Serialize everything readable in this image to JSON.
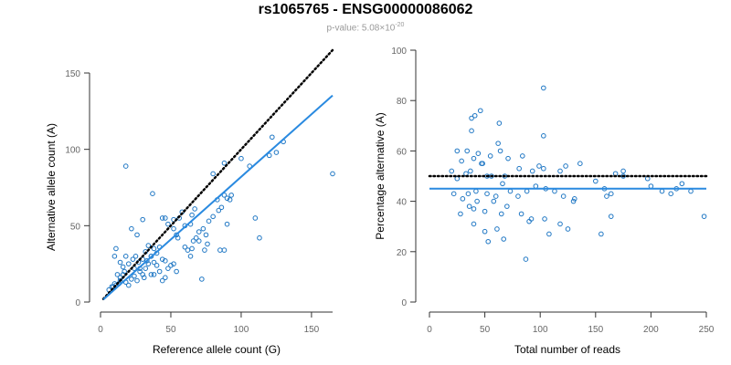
{
  "title": "rs1065765 - ENSG00000086062",
  "subtitle": {
    "prefix": "p-value: 5.08×10",
    "exponent": "-20"
  },
  "colors": {
    "points": "#1f77c4",
    "fit": "#2a8ae0",
    "reference": "#000000"
  },
  "chart_data": [
    {
      "type": "scatter",
      "xlabel": "Reference allele count (G)",
      "ylabel": "Alternative allele count (A)",
      "xlim": [
        0,
        165
      ],
      "ylim": [
        0,
        150
      ],
      "xticks": [
        "0",
        "50",
        "100",
        "150"
      ],
      "yticks": [
        "0",
        "50",
        "100",
        "150"
      ],
      "reference_line": {
        "style": "dotted",
        "slope": 1,
        "intercept": 0,
        "x_range": [
          2,
          165
        ]
      },
      "fit_line": {
        "slope": 0.82,
        "intercept": 0,
        "x_range": [
          2,
          165
        ]
      },
      "points": [
        [
          18,
          89
        ],
        [
          165,
          84
        ],
        [
          37,
          71
        ],
        [
          80,
          84
        ],
        [
          88,
          91
        ],
        [
          100,
          94
        ],
        [
          106,
          89
        ],
        [
          122,
          108
        ],
        [
          130,
          105
        ],
        [
          125,
          98
        ],
        [
          120,
          96
        ],
        [
          58,
          59
        ],
        [
          60,
          50
        ],
        [
          64,
          51
        ],
        [
          67,
          61
        ],
        [
          65,
          57
        ],
        [
          56,
          55
        ],
        [
          52,
          54
        ],
        [
          48,
          51
        ],
        [
          44,
          55
        ],
        [
          46,
          55
        ],
        [
          52,
          48
        ],
        [
          54,
          44
        ],
        [
          30,
          54
        ],
        [
          22,
          48
        ],
        [
          26,
          44
        ],
        [
          11,
          35
        ],
        [
          10,
          30
        ],
        [
          14,
          26
        ],
        [
          16,
          23
        ],
        [
          17,
          20
        ],
        [
          12,
          18
        ],
        [
          14,
          14
        ],
        [
          10,
          12
        ],
        [
          8,
          10
        ],
        [
          6,
          8
        ],
        [
          13,
          12
        ],
        [
          18,
          13
        ],
        [
          20,
          11
        ],
        [
          22,
          15
        ],
        [
          24,
          17
        ],
        [
          26,
          14
        ],
        [
          28,
          20
        ],
        [
          30,
          18
        ],
        [
          32,
          22
        ],
        [
          34,
          25
        ],
        [
          36,
          30
        ],
        [
          38,
          26
        ],
        [
          40,
          32
        ],
        [
          42,
          36
        ],
        [
          44,
          28
        ],
        [
          46,
          27
        ],
        [
          48,
          22
        ],
        [
          50,
          24
        ],
        [
          52,
          25
        ],
        [
          54,
          20
        ],
        [
          27,
          26
        ],
        [
          30,
          28
        ],
        [
          33,
          27
        ],
        [
          36,
          30
        ],
        [
          38,
          35
        ],
        [
          23,
          28
        ],
        [
          25,
          30
        ],
        [
          40,
          24
        ],
        [
          42,
          20
        ],
        [
          44,
          14
        ],
        [
          46,
          16
        ],
        [
          55,
          42
        ],
        [
          60,
          36
        ],
        [
          62,
          34
        ],
        [
          64,
          30
        ],
        [
          66,
          40
        ],
        [
          68,
          42
        ],
        [
          70,
          46
        ],
        [
          73,
          48
        ],
        [
          75,
          44
        ],
        [
          77,
          53
        ],
        [
          80,
          56
        ],
        [
          84,
          60
        ],
        [
          86,
          62
        ],
        [
          88,
          70
        ],
        [
          90,
          68
        ],
        [
          92,
          67
        ],
        [
          93,
          70
        ],
        [
          83,
          67
        ],
        [
          85,
          34
        ],
        [
          88,
          34
        ],
        [
          74,
          34
        ],
        [
          72,
          15
        ],
        [
          90,
          51
        ],
        [
          110,
          55
        ],
        [
          113,
          42
        ],
        [
          65,
          35
        ],
        [
          70,
          40
        ],
        [
          76,
          38
        ],
        [
          34,
          37
        ],
        [
          32,
          33
        ],
        [
          20,
          25
        ],
        [
          18,
          30
        ],
        [
          24,
          22
        ],
        [
          36,
          18
        ],
        [
          38,
          18
        ],
        [
          31,
          16
        ],
        [
          28,
          22
        ],
        [
          14,
          16
        ],
        [
          16,
          18
        ],
        [
          11,
          11
        ],
        [
          9,
          10
        ]
      ]
    },
    {
      "type": "scatter",
      "xlabel": "Total number of reads",
      "ylabel": "Percentage alternative (A)",
      "xlim": [
        0,
        250
      ],
      "ylim": [
        0,
        100
      ],
      "xticks": [
        "0",
        "50",
        "100",
        "150",
        "200",
        "250"
      ],
      "yticks": [
        "0",
        "20",
        "40",
        "60",
        "80",
        "100"
      ],
      "reference_line": {
        "style": "dotted",
        "y": 50,
        "x_range": [
          0,
          250
        ]
      },
      "fit_line": {
        "y": 45,
        "x_range": [
          0,
          250
        ]
      },
      "points": [
        [
          103,
          85
        ],
        [
          41,
          74
        ],
        [
          46,
          76
        ],
        [
          38,
          73
        ],
        [
          63,
          71
        ],
        [
          38,
          68
        ],
        [
          62,
          63
        ],
        [
          25,
          60
        ],
        [
          34,
          60
        ],
        [
          29,
          56
        ],
        [
          40,
          57
        ],
        [
          44,
          59
        ],
        [
          55,
          58
        ],
        [
          64,
          60
        ],
        [
          71,
          57
        ],
        [
          48,
          55
        ],
        [
          84,
          58
        ],
        [
          103,
          66
        ],
        [
          20,
          52
        ],
        [
          25,
          49
        ],
        [
          33,
          51
        ],
        [
          37,
          52
        ],
        [
          47,
          55
        ],
        [
          52,
          50
        ],
        [
          56,
          50
        ],
        [
          68,
          50
        ],
        [
          81,
          53
        ],
        [
          93,
          52
        ],
        [
          99,
          54
        ],
        [
          103,
          53
        ],
        [
          118,
          52
        ],
        [
          123,
          54
        ],
        [
          136,
          55
        ],
        [
          168,
          51
        ],
        [
          175,
          52
        ],
        [
          22,
          43
        ],
        [
          30,
          41
        ],
        [
          35,
          43
        ],
        [
          42,
          44
        ],
        [
          52,
          43
        ],
        [
          60,
          42
        ],
        [
          66,
          47
        ],
        [
          73,
          44
        ],
        [
          80,
          42
        ],
        [
          88,
          44
        ],
        [
          96,
          46
        ],
        [
          105,
          45
        ],
        [
          113,
          44
        ],
        [
          121,
          42
        ],
        [
          131,
          41
        ],
        [
          150,
          48
        ],
        [
          158,
          45
        ],
        [
          160,
          42
        ],
        [
          164,
          43
        ],
        [
          28,
          35
        ],
        [
          36,
          38
        ],
        [
          40,
          37
        ],
        [
          43,
          40
        ],
        [
          50,
          36
        ],
        [
          58,
          40
        ],
        [
          65,
          35
        ],
        [
          70,
          38
        ],
        [
          83,
          35
        ],
        [
          92,
          33
        ],
        [
          104,
          33
        ],
        [
          118,
          31
        ],
        [
          125,
          29
        ],
        [
          130,
          40
        ],
        [
          164,
          34
        ],
        [
          200,
          46
        ],
        [
          210,
          44
        ],
        [
          218,
          43
        ],
        [
          223,
          45
        ],
        [
          228,
          47
        ],
        [
          236,
          44
        ],
        [
          248,
          34
        ],
        [
          40,
          31
        ],
        [
          50,
          28
        ],
        [
          61,
          29
        ],
        [
          53,
          24
        ],
        [
          67,
          25
        ],
        [
          90,
          32
        ],
        [
          108,
          27
        ],
        [
          155,
          27
        ],
        [
          87,
          17
        ],
        [
          197,
          49
        ],
        [
          175,
          50
        ]
      ]
    }
  ]
}
